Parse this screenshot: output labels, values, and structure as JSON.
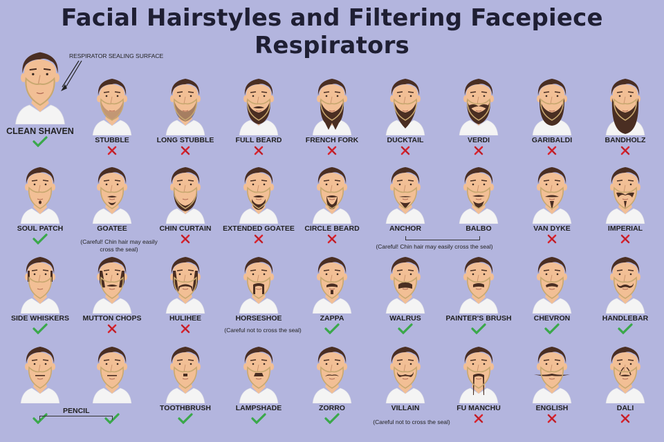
{
  "title": "Facial Hairstyles and Filtering Facepiece Respirators",
  "callout": "RESPIRATOR SEALING SURFACE",
  "colors": {
    "background": "#b3b5de",
    "skin": "#f2bf95",
    "hair": "#4a2e22",
    "shirt": "#f4f4f4",
    "seal": "#c8a870",
    "check": "#3aa84a",
    "cross": "#d8242f"
  },
  "featured": {
    "label": "CLEAN SHAVEN",
    "ok": true
  },
  "rows": [
    [
      {
        "label": "STUBBLE",
        "ok": false,
        "style": "stubble"
      },
      {
        "label": "LONG STUBBLE",
        "ok": false,
        "style": "longstubble"
      },
      {
        "label": "FULL BEARD",
        "ok": false,
        "style": "fullbeard"
      },
      {
        "label": "FRENCH FORK",
        "ok": false,
        "style": "frenchfork"
      },
      {
        "label": "DUCKTAIL",
        "ok": false,
        "style": "ducktail"
      },
      {
        "label": "VERDI",
        "ok": false,
        "style": "verdi"
      },
      {
        "label": "GARIBALDI",
        "ok": false,
        "style": "garibaldi"
      },
      {
        "label": "BANDHOLZ",
        "ok": false,
        "style": "bandholz"
      }
    ],
    [
      {
        "label": "SOUL PATCH",
        "ok": true,
        "style": "soulpatch"
      },
      {
        "label": "GOATEE",
        "ok": null,
        "style": "goatee"
      },
      {
        "label": "CHIN CURTAIN",
        "ok": false,
        "style": "chincurtain"
      },
      {
        "label": "EXTENDED GOATEE",
        "ok": false,
        "style": "extgoatee"
      },
      {
        "label": "CIRCLE BEARD",
        "ok": false,
        "style": "circle"
      },
      {
        "label": "ANCHOR",
        "ok": null,
        "style": "anchor"
      },
      {
        "label": "BALBO",
        "ok": null,
        "style": "balbo"
      },
      {
        "label": "VAN DYKE",
        "ok": false,
        "style": "vandyke"
      },
      {
        "label": "IMPERIAL",
        "ok": false,
        "style": "imperial"
      }
    ],
    [
      {
        "label": "SIDE WHISKERS",
        "ok": true,
        "style": "sidewhiskers"
      },
      {
        "label": "MUTTON CHOPS",
        "ok": false,
        "style": "mutton"
      },
      {
        "label": "HULIHEE",
        "ok": false,
        "style": "hulihee"
      },
      {
        "label": "HORSESHOE",
        "ok": null,
        "style": "horseshoe"
      },
      {
        "label": "ZAPPA",
        "ok": true,
        "style": "zappa"
      },
      {
        "label": "WALRUS",
        "ok": true,
        "style": "walrus"
      },
      {
        "label": "PAINTER'S BRUSH",
        "ok": true,
        "style": "painter"
      },
      {
        "label": "CHEVRON",
        "ok": true,
        "style": "chevron"
      },
      {
        "label": "HANDLEBAR",
        "ok": true,
        "style": "handlebar"
      }
    ],
    [
      {
        "label": "",
        "ok": true,
        "style": "pencil"
      },
      {
        "label": "",
        "ok": true,
        "style": "pencil2"
      },
      {
        "label": "TOOTHBRUSH",
        "ok": true,
        "style": "toothbrush"
      },
      {
        "label": "LAMPSHADE",
        "ok": true,
        "style": "lampshade"
      },
      {
        "label": "ZORRO",
        "ok": true,
        "style": "zorro"
      },
      {
        "label": "VILLAIN",
        "ok": null,
        "style": "villain"
      },
      {
        "label": "FU MANCHU",
        "ok": false,
        "style": "fumanchu"
      },
      {
        "label": "ENGLISH",
        "ok": false,
        "style": "english"
      },
      {
        "label": "DALI",
        "ok": false,
        "style": "dali"
      }
    ]
  ],
  "notes": {
    "goatee": "(Careful! Chin hair may easily cross the seal)",
    "anchor_balbo": "(Careful! Chin hair may easily cross the seal)",
    "horseshoe": "(Careful not to cross the seal)",
    "villain": "(Careful not to cross the seal)",
    "pencil": "PENCIL"
  }
}
